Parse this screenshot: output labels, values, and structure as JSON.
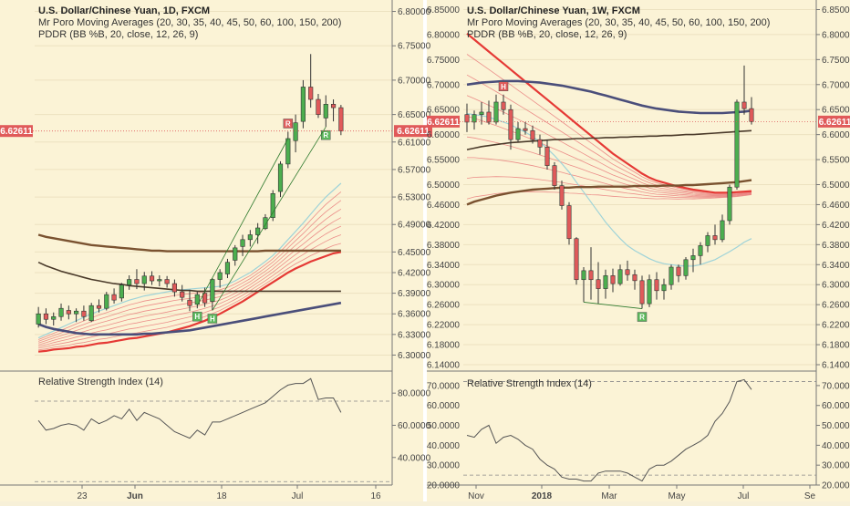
{
  "colors": {
    "background": "#fbf3d6",
    "up": "#4cae4f",
    "down": "#e05a5a",
    "last_price": "#e05a5a",
    "ma_fan": "#e97b7b",
    "ma_main_red": "#e53935",
    "ma_brown": "#7a5230",
    "ma_dark": "#4a3a2a",
    "ma_navy": "#4a4e7a",
    "ma_light_blue": "#9fd3d8",
    "rsi_line": "#555555"
  },
  "left_chart": {
    "legend": {
      "line1": "U.S. Dollar/Chinese Yuan, 1D, FXCM",
      "line2": "Mr Poro Moving Averages (20, 30, 35, 40, 45, 50, 60, 100, 150, 200)",
      "line3": "PDDR (BB %B, 20, close, 12, 26, 9)"
    },
    "price_axis": [
      "6.80000",
      "6.75000",
      "6.70000",
      "6.65000",
      "6.61000",
      "6.57000",
      "6.53000",
      "6.49000",
      "6.45000",
      "6.42000",
      "6.39000",
      "6.36000",
      "6.33000",
      "6.30000"
    ],
    "last_price": "6.62611",
    "rsi_title": "Relative Strength Index (14)",
    "rsi_axis": [
      "80.0000",
      "60.0000",
      "40.0000"
    ],
    "x_labels": [
      "23",
      "Jun",
      "18",
      "Jul",
      "16"
    ],
    "markers": [
      {
        "label": "H"
      },
      {
        "label": "H"
      },
      {
        "label": "R"
      },
      {
        "label": "R"
      }
    ]
  },
  "right_chart": {
    "legend": {
      "line1": "U.S. Dollar/Chinese Yuan, 1W, FXCM",
      "line2": "Mr Poro Moving Averages (20, 30, 35, 40, 45, 50, 60, 100, 150, 200)",
      "line3": "PDDR (BB %B, 20, close, 12, 26, 9)"
    },
    "price_axis": [
      "6.85000",
      "6.80000",
      "6.75000",
      "6.70000",
      "6.65000",
      "6.60000",
      "6.55000",
      "6.50000",
      "6.46000",
      "6.42000",
      "6.38000",
      "6.34000",
      "6.30000",
      "6.26000",
      "6.22000",
      "6.18000",
      "6.14000"
    ],
    "last_price": "6.62611",
    "rsi_title": "Relative Strength Index (14)",
    "rsi_axis": [
      "70.0000",
      "60.0000",
      "50.0000",
      "40.0000",
      "30.0000",
      "20.0000"
    ],
    "x_labels": [
      "Nov",
      "2018",
      "Mar",
      "May",
      "Jul",
      "Se"
    ],
    "markers": [
      {
        "label": "H"
      },
      {
        "label": "R"
      }
    ]
  },
  "chart_data": [
    {
      "type": "candlestick",
      "symbol": "USDCNY",
      "timeframe": "1D",
      "price_ylim": [
        6.29,
        6.81
      ],
      "x_ticks": [
        "23",
        "Jun",
        "18",
        "Jul",
        "16"
      ],
      "candles": [
        [
          6.345,
          6.37,
          6.34,
          6.36
        ],
        [
          6.36,
          6.368,
          6.345,
          6.352
        ],
        [
          6.352,
          6.362,
          6.343,
          6.356
        ],
        [
          6.356,
          6.375,
          6.35,
          6.368
        ],
        [
          6.365,
          6.372,
          6.352,
          6.36
        ],
        [
          6.36,
          6.368,
          6.348,
          6.364
        ],
        [
          6.364,
          6.372,
          6.35,
          6.356
        ],
        [
          6.35,
          6.376,
          6.348,
          6.372
        ],
        [
          6.372,
          6.381,
          6.362,
          6.368
        ],
        [
          6.368,
          6.392,
          6.365,
          6.388
        ],
        [
          6.388,
          6.397,
          6.375,
          6.38
        ],
        [
          6.383,
          6.405,
          6.378,
          6.402
        ],
        [
          6.402,
          6.416,
          6.395,
          6.41
        ],
        [
          6.41,
          6.425,
          6.396,
          6.404
        ],
        [
          6.404,
          6.421,
          6.394,
          6.415
        ],
        [
          6.415,
          6.422,
          6.402,
          6.408
        ],
        [
          6.408,
          6.416,
          6.4,
          6.41
        ],
        [
          6.41,
          6.415,
          6.398,
          6.404
        ],
        [
          6.404,
          6.41,
          6.385,
          6.392
        ],
        [
          6.392,
          6.402,
          6.378,
          6.384
        ],
        [
          6.38,
          6.395,
          6.364,
          6.372
        ],
        [
          6.374,
          6.392,
          6.368,
          6.388
        ],
        [
          6.39,
          6.398,
          6.37,
          6.376
        ],
        [
          6.378,
          6.412,
          6.365,
          6.41
        ],
        [
          6.41,
          6.425,
          6.398,
          6.42
        ],
        [
          6.418,
          6.44,
          6.412,
          6.435
        ],
        [
          6.438,
          6.46,
          6.43,
          6.456
        ],
        [
          6.458,
          6.475,
          6.444,
          6.468
        ],
        [
          6.468,
          6.482,
          6.458,
          6.475
        ],
        [
          6.475,
          6.492,
          6.462,
          6.485
        ],
        [
          6.484,
          6.505,
          6.482,
          6.5
        ],
        [
          6.5,
          6.54,
          6.495,
          6.535
        ],
        [
          6.538,
          6.582,
          6.53,
          6.578
        ],
        [
          6.578,
          6.625,
          6.572,
          6.615
        ],
        [
          6.612,
          6.65,
          6.595,
          6.638
        ],
        [
          6.64,
          6.7,
          6.63,
          6.69
        ],
        [
          6.69,
          6.738,
          6.66,
          6.672
        ],
        [
          6.672,
          6.68,
          6.645,
          6.65
        ],
        [
          6.645,
          6.678,
          6.632,
          6.665
        ],
        [
          6.665,
          6.672,
          6.64,
          6.66
        ],
        [
          6.66,
          6.664,
          6.62,
          6.626
        ]
      ],
      "series": [
        {
          "name": "MA 200",
          "values": [
            6.345,
            6.341,
            6.338,
            6.336,
            6.334,
            6.332,
            6.331,
            6.33,
            6.33,
            6.33,
            6.33,
            6.33,
            6.33,
            6.33,
            6.331,
            6.331,
            6.332,
            6.333,
            6.334,
            6.335,
            6.336,
            6.338,
            6.34,
            6.342,
            6.344,
            6.346,
            6.348,
            6.35,
            6.352,
            6.354,
            6.356,
            6.358,
            6.36,
            6.362,
            6.364,
            6.366,
            6.368,
            6.37,
            6.372,
            6.374,
            6.376
          ]
        },
        {
          "name": "MA 150",
          "values": [
            6.435,
            6.43,
            6.426,
            6.422,
            6.419,
            6.416,
            6.413,
            6.41,
            6.408,
            6.406,
            6.404,
            6.403,
            6.401,
            6.4,
            6.399,
            6.398,
            6.397,
            6.396,
            6.395,
            6.394,
            6.394,
            6.393,
            6.393,
            6.393,
            6.393,
            6.393,
            6.393,
            6.393,
            6.393,
            6.393,
            6.393,
            6.393,
            6.393,
            6.393,
            6.393,
            6.393,
            6.393,
            6.393,
            6.393,
            6.393,
            6.393
          ]
        },
        {
          "name": "MA 100",
          "values": [
            6.475,
            6.472,
            6.47,
            6.468,
            6.466,
            6.464,
            6.462,
            6.46,
            6.459,
            6.458,
            6.457,
            6.456,
            6.455,
            6.454,
            6.453,
            6.452,
            6.452,
            6.451,
            6.451,
            6.451,
            6.451,
            6.451,
            6.451,
            6.451,
            6.451,
            6.451,
            6.451,
            6.451,
            6.451,
            6.451,
            6.452,
            6.452,
            6.452,
            6.452,
            6.452,
            6.452,
            6.452,
            6.452,
            6.452,
            6.452,
            6.452
          ]
        },
        {
          "name": "MA 60",
          "values": [
            6.305,
            6.306,
            6.308,
            6.309,
            6.31,
            6.312,
            6.313,
            6.315,
            6.317,
            6.318,
            6.32,
            6.322,
            6.324,
            6.325,
            6.327,
            6.329,
            6.331,
            6.333,
            6.336,
            6.339,
            6.342,
            6.346,
            6.35,
            6.355,
            6.36,
            6.366,
            6.372,
            6.378,
            6.385,
            6.392,
            6.399,
            6.406,
            6.413,
            6.42,
            6.426,
            6.431,
            6.436,
            6.44,
            6.444,
            6.448,
            6.45
          ]
        },
        {
          "name": "MA 20",
          "values": [
            6.325,
            6.33,
            6.335,
            6.34,
            6.345,
            6.35,
            6.355,
            6.36,
            6.364,
            6.368,
            6.372,
            6.376,
            6.38,
            6.383,
            6.386,
            6.388,
            6.39,
            6.392,
            6.394,
            6.395,
            6.396,
            6.397,
            6.398,
            6.399,
            6.4,
            6.403,
            6.408,
            6.414,
            6.42,
            6.428,
            6.436,
            6.445,
            6.456,
            6.468,
            6.48,
            6.492,
            6.505,
            6.518,
            6.53,
            6.54,
            6.55
          ]
        }
      ],
      "rsi": {
        "title": "Relative Strength Index (14)",
        "ylim": [
          24,
          92
        ],
        "overbought": 75,
        "oversold": 25,
        "values": [
          63,
          57,
          58,
          60,
          61,
          60,
          57,
          64,
          61,
          63,
          66,
          64,
          70,
          63,
          68,
          66,
          64,
          60,
          56,
          54,
          52,
          57,
          54,
          62,
          62,
          64,
          66,
          68,
          70,
          72,
          74,
          78,
          82,
          85,
          86,
          86,
          89,
          76,
          77,
          77,
          68
        ]
      }
    },
    {
      "type": "candlestick",
      "symbol": "USDCNY",
      "timeframe": "1W",
      "price_ylim": [
        6.14,
        6.86
      ],
      "x_ticks": [
        "Nov",
        "2018",
        "Mar",
        "May",
        "Jul",
        "Se"
      ],
      "candles": [
        [
          6.64,
          6.662,
          6.605,
          6.625
        ],
        [
          6.625,
          6.648,
          6.61,
          6.64
        ],
        [
          6.64,
          6.665,
          6.62,
          6.645
        ],
        [
          6.645,
          6.668,
          6.62,
          6.625
        ],
        [
          6.625,
          6.68,
          6.62,
          6.665
        ],
        [
          6.665,
          6.68,
          6.64,
          6.65
        ],
        [
          6.65,
          6.66,
          6.57,
          6.59
        ],
        [
          6.59,
          6.625,
          6.585,
          6.612
        ],
        [
          6.612,
          6.625,
          6.6,
          6.608
        ],
        [
          6.608,
          6.618,
          6.582,
          6.59
        ],
        [
          6.59,
          6.6,
          6.56,
          6.575
        ],
        [
          6.575,
          6.59,
          6.53,
          6.538
        ],
        [
          6.538,
          6.545,
          6.49,
          6.498
        ],
        [
          6.498,
          6.508,
          6.45,
          6.458
        ],
        [
          6.458,
          6.465,
          6.38,
          6.392
        ],
        [
          6.392,
          6.395,
          6.3,
          6.31
        ],
        [
          6.31,
          6.335,
          6.265,
          6.328
        ],
        [
          6.328,
          6.375,
          6.27,
          6.31
        ],
        [
          6.31,
          6.345,
          6.262,
          6.292
        ],
        [
          6.292,
          6.33,
          6.272,
          6.318
        ],
        [
          6.318,
          6.332,
          6.285,
          6.302
        ],
        [
          6.302,
          6.34,
          6.298,
          6.33
        ],
        [
          6.33,
          6.348,
          6.308,
          6.32
        ],
        [
          6.32,
          6.33,
          6.29,
          6.308
        ],
        [
          6.308,
          6.318,
          6.252,
          6.262
        ],
        [
          6.262,
          6.32,
          6.255,
          6.31
        ],
        [
          6.31,
          6.325,
          6.27,
          6.288
        ],
        [
          6.288,
          6.312,
          6.27,
          6.3
        ],
        [
          6.3,
          6.34,
          6.29,
          6.335
        ],
        [
          6.335,
          6.34,
          6.305,
          6.318
        ],
        [
          6.318,
          6.355,
          6.31,
          6.35
        ],
        [
          6.35,
          6.372,
          6.325,
          6.358
        ],
        [
          6.358,
          6.385,
          6.34,
          6.378
        ],
        [
          6.378,
          6.405,
          6.365,
          6.398
        ],
        [
          6.398,
          6.42,
          6.38,
          6.39
        ],
        [
          6.39,
          6.44,
          6.385,
          6.428
        ],
        [
          6.428,
          6.5,
          6.42,
          6.495
        ],
        [
          6.495,
          6.67,
          6.49,
          6.665
        ],
        [
          6.665,
          6.738,
          6.64,
          6.652
        ],
        [
          6.652,
          6.675,
          6.62,
          6.626
        ]
      ],
      "series": [
        {
          "name": "MA 20",
          "values": [
            6.642,
            6.64,
            6.638,
            6.635,
            6.63,
            6.625,
            6.62,
            6.612,
            6.605,
            6.596,
            6.585,
            6.572,
            6.558,
            6.542,
            6.525,
            6.505,
            6.485,
            6.465,
            6.445,
            6.425,
            6.408,
            6.392,
            6.378,
            6.368,
            6.36,
            6.352,
            6.346,
            6.342,
            6.34,
            6.338,
            6.337,
            6.337,
            6.34,
            6.345,
            6.35,
            6.358,
            6.366,
            6.375,
            6.385,
            6.392
          ]
        },
        {
          "name": "MA 50",
          "values": [
            6.802,
            6.79,
            6.778,
            6.766,
            6.754,
            6.742,
            6.73,
            6.718,
            6.706,
            6.694,
            6.682,
            6.67,
            6.658,
            6.646,
            6.634,
            6.622,
            6.61,
            6.598,
            6.586,
            6.574,
            6.562,
            6.552,
            6.542,
            6.532,
            6.522,
            6.514,
            6.508,
            6.504,
            6.5,
            6.496,
            6.493,
            6.49,
            6.488,
            6.486,
            6.484,
            6.484,
            6.484,
            6.485,
            6.486,
            6.487
          ]
        },
        {
          "name": "MA 100",
          "values": [
            6.57,
            6.573,
            6.576,
            6.578,
            6.58,
            6.582,
            6.584,
            6.585,
            6.586,
            6.587,
            6.588,
            6.589,
            6.59,
            6.59,
            6.591,
            6.592,
            6.592,
            6.593,
            6.593,
            6.594,
            6.594,
            6.595,
            6.595,
            6.596,
            6.596,
            6.597,
            6.597,
            6.598,
            6.598,
            6.599,
            6.6,
            6.6,
            6.601,
            6.602,
            6.603,
            6.604,
            6.605,
            6.606,
            6.607,
            6.608
          ]
        },
        {
          "name": "MA 150",
          "values": [
            6.46,
            6.466,
            6.47,
            6.474,
            6.478,
            6.481,
            6.484,
            6.486,
            6.488,
            6.49,
            6.491,
            6.492,
            6.493,
            6.494,
            6.494,
            6.495,
            6.495,
            6.495,
            6.496,
            6.496,
            6.496,
            6.496,
            6.496,
            6.497,
            6.497,
            6.497,
            6.497,
            6.498,
            6.498,
            6.498,
            6.499,
            6.499,
            6.5,
            6.501,
            6.502,
            6.503,
            6.504,
            6.505,
            6.507,
            6.509
          ]
        },
        {
          "name": "MA 200",
          "values": [
            6.7,
            6.702,
            6.704,
            6.705,
            6.706,
            6.707,
            6.707,
            6.707,
            6.706,
            6.705,
            6.704,
            6.702,
            6.7,
            6.698,
            6.695,
            6.692,
            6.689,
            6.686,
            6.682,
            6.678,
            6.674,
            6.67,
            6.666,
            6.662,
            6.658,
            6.655,
            6.652,
            6.65,
            6.648,
            6.646,
            6.645,
            6.644,
            6.643,
            6.643,
            6.643,
            6.643,
            6.644,
            6.645,
            6.646,
            6.648
          ]
        }
      ],
      "rsi": {
        "title": "Relative Strength Index (14)",
        "ylim": [
          20,
          75
        ],
        "overbought": 72,
        "oversold": 25,
        "values": [
          45,
          44,
          48,
          50,
          41,
          44,
          45,
          43,
          40,
          38,
          33,
          30,
          28,
          24,
          23,
          23,
          22,
          22,
          26,
          27,
          27,
          27,
          26,
          24,
          22,
          28,
          30,
          30,
          32,
          35,
          38,
          40,
          42,
          45,
          52,
          56,
          62,
          72,
          73,
          68
        ]
      }
    }
  ]
}
